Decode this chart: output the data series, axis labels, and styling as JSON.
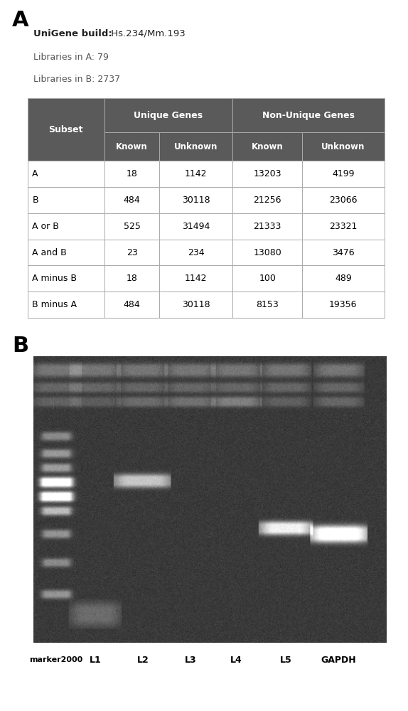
{
  "panel_a_label": "A",
  "panel_b_label": "B",
  "unigene_bold": "UniGene build:",
  "unigene_rest": " Hs.234/Mm.193",
  "lib_a": "Libraries in A: 79",
  "lib_b": "Libraries in B: 2737",
  "col_headers_top": [
    "Unique Genes",
    "Non-Unique Genes"
  ],
  "col_headers_bottom": [
    "Known",
    "Unknown",
    "Known",
    "Unknown"
  ],
  "row_names": [
    "A",
    "B",
    "A or B",
    "A and B",
    "A minus B",
    "B minus A"
  ],
  "table_data": [
    [
      "18",
      "1142",
      "13203",
      "4199"
    ],
    [
      "484",
      "30118",
      "21256",
      "23066"
    ],
    [
      "525",
      "31494",
      "21333",
      "23321"
    ],
    [
      "23",
      "234",
      "13080",
      "3476"
    ],
    [
      "18",
      "1142",
      "100",
      "489"
    ],
    [
      "484",
      "30118",
      "8153",
      "19356"
    ]
  ],
  "header_bg": "#5a5a5a",
  "header_text": "#ffffff",
  "cell_bg": "#ffffff",
  "border_color": "#aaaaaa",
  "lane_labels": [
    "marker2000",
    "L1",
    "L2",
    "L3",
    "L4",
    "L5",
    "GAPDH"
  ],
  "fig_width": 5.74,
  "fig_height": 10.0,
  "bg_color": "#ffffff"
}
